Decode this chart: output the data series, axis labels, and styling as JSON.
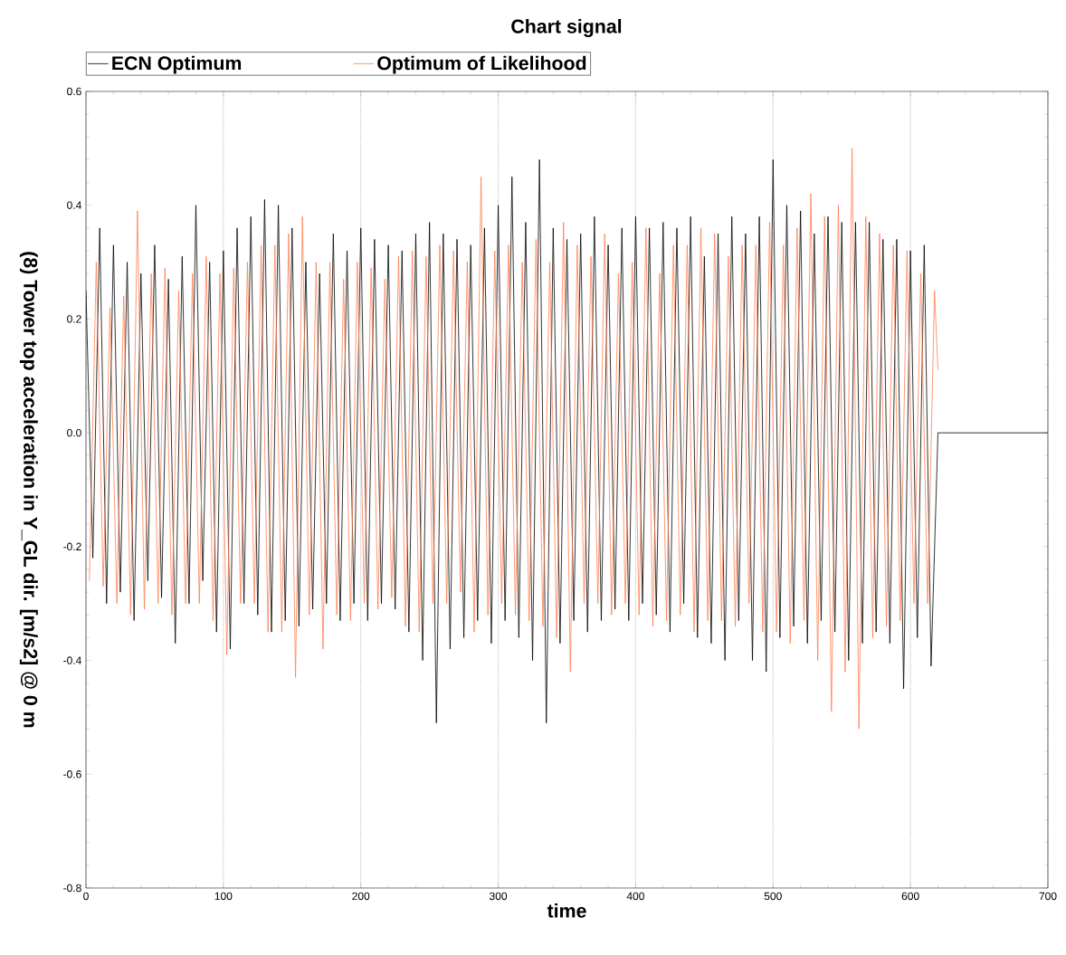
{
  "chart_data": {
    "type": "line",
    "title": "Chart signal",
    "xlabel": "time",
    "ylabel": "(8) Tower top acceleration in Y_GL dir. [m/s2] @ 0 m",
    "xlim": [
      0,
      700
    ],
    "xticks": [
      0,
      100,
      200,
      300,
      400,
      500,
      600,
      700
    ],
    "ylim": [
      -0.8,
      0.6
    ],
    "yticks": [
      -0.8,
      -0.6,
      -0.4,
      -0.2,
      {
        "value": 0,
        "label": "0.0"
      },
      0.2,
      0.4,
      0.6
    ],
    "grid": "x",
    "legend": "top",
    "marker": "none",
    "line_style": "solid",
    "series": [
      {
        "name": "ECN Optimum",
        "color": "#000000",
        "x": [
          0,
          5,
          10,
          15,
          20,
          25,
          30,
          35,
          40,
          45,
          50,
          55,
          60,
          65,
          70,
          75,
          80,
          85,
          90,
          95,
          100,
          105,
          110,
          115,
          120,
          125,
          130,
          135,
          140,
          145,
          150,
          155,
          160,
          165,
          170,
          175,
          180,
          185,
          190,
          195,
          200,
          205,
          210,
          215,
          220,
          225,
          230,
          235,
          240,
          245,
          250,
          255,
          260,
          265,
          270,
          275,
          280,
          285,
          290,
          295,
          300,
          305,
          310,
          315,
          320,
          325,
          330,
          335,
          340,
          345,
          350,
          355,
          360,
          365,
          370,
          375,
          380,
          385,
          390,
          395,
          400,
          405,
          410,
          415,
          420,
          425,
          430,
          435,
          440,
          445,
          450,
          455,
          460,
          465,
          470,
          475,
          480,
          485,
          490,
          495,
          500,
          505,
          510,
          515,
          520,
          525,
          530,
          535,
          540,
          545,
          550,
          555,
          560,
          565,
          570,
          575,
          580,
          585,
          590,
          595,
          600,
          605,
          610,
          615,
          620,
          700
        ],
        "values": [
          0.25,
          -0.22,
          0.36,
          -0.3,
          0.33,
          -0.28,
          0.3,
          -0.33,
          0.28,
          -0.26,
          0.33,
          -0.29,
          0.27,
          -0.37,
          0.31,
          -0.3,
          0.4,
          -0.26,
          0.3,
          -0.35,
          0.32,
          -0.38,
          0.36,
          -0.3,
          0.38,
          -0.32,
          0.41,
          -0.35,
          0.4,
          -0.33,
          0.36,
          -0.34,
          0.3,
          -0.31,
          0.28,
          -0.3,
          0.35,
          -0.33,
          0.32,
          -0.3,
          0.36,
          -0.33,
          0.34,
          -0.3,
          0.33,
          -0.31,
          0.32,
          -0.35,
          0.35,
          -0.4,
          0.37,
          -0.51,
          0.35,
          -0.38,
          0.34,
          -0.36,
          0.33,
          -0.33,
          0.36,
          -0.37,
          0.4,
          -0.33,
          0.45,
          -0.36,
          0.37,
          -0.4,
          0.48,
          -0.51,
          0.36,
          -0.37,
          0.34,
          -0.33,
          0.35,
          -0.35,
          0.38,
          -0.33,
          0.33,
          -0.31,
          0.36,
          -0.33,
          0.38,
          -0.3,
          0.36,
          -0.32,
          0.37,
          -0.35,
          0.36,
          -0.3,
          0.38,
          -0.36,
          0.31,
          -0.37,
          0.35,
          -0.4,
          0.38,
          -0.33,
          0.35,
          -0.4,
          0.38,
          -0.42,
          0.48,
          -0.36,
          0.4,
          -0.34,
          0.39,
          -0.37,
          0.35,
          -0.33,
          0.38,
          -0.35,
          0.37,
          -0.4,
          0.37,
          -0.37,
          0.37,
          -0.35,
          0.34,
          -0.37,
          0.34,
          -0.45,
          0.32,
          -0.36,
          0.33,
          -0.41,
          0.0,
          0.0
        ]
      },
      {
        "name": "Optimum of Likelihood",
        "color": "#ff7f50",
        "x": [
          2.5,
          7.5,
          12.5,
          17.5,
          22.5,
          27.5,
          32.5,
          37.5,
          42.5,
          47.5,
          52.5,
          57.5,
          62.5,
          67.5,
          72.5,
          77.5,
          82.5,
          87.5,
          92.5,
          97.5,
          102.5,
          107.5,
          112.5,
          117.5,
          122.5,
          127.5,
          132.5,
          137.5,
          142.5,
          147.5,
          152.5,
          157.5,
          162.5,
          167.5,
          172.5,
          177.5,
          182.5,
          187.5,
          192.5,
          197.5,
          202.5,
          207.5,
          212.5,
          217.5,
          222.5,
          227.5,
          232.5,
          237.5,
          242.5,
          247.5,
          252.5,
          257.5,
          262.5,
          267.5,
          272.5,
          277.5,
          282.5,
          287.5,
          292.5,
          297.5,
          302.5,
          307.5,
          312.5,
          317.5,
          322.5,
          327.5,
          332.5,
          337.5,
          342.5,
          347.5,
          352.5,
          357.5,
          362.5,
          367.5,
          372.5,
          377.5,
          382.5,
          387.5,
          392.5,
          397.5,
          402.5,
          407.5,
          412.5,
          417.5,
          422.5,
          427.5,
          432.5,
          437.5,
          442.5,
          447.5,
          452.5,
          457.5,
          462.5,
          467.5,
          472.5,
          477.5,
          482.5,
          487.5,
          492.5,
          497.5,
          502.5,
          507.5,
          512.5,
          517.5,
          522.5,
          527.5,
          532.5,
          537.5,
          542.5,
          547.5,
          552.5,
          557.5,
          562.5,
          567.5,
          572.5,
          577.5,
          582.5,
          587.5,
          592.5,
          597.5,
          602.5,
          607.5,
          612.5,
          617.5,
          620
        ],
        "values": [
          -0.26,
          0.3,
          -0.27,
          0.22,
          -0.3,
          0.24,
          -0.32,
          0.39,
          -0.31,
          0.28,
          -0.3,
          0.29,
          -0.32,
          0.25,
          -0.3,
          0.28,
          -0.3,
          0.31,
          -0.33,
          0.28,
          -0.39,
          0.29,
          -0.3,
          0.3,
          -0.3,
          0.33,
          -0.35,
          0.33,
          -0.35,
          0.35,
          -0.43,
          0.38,
          -0.32,
          0.3,
          -0.38,
          0.3,
          -0.32,
          0.27,
          -0.33,
          0.3,
          -0.3,
          0.29,
          -0.31,
          0.27,
          -0.29,
          0.31,
          -0.34,
          0.32,
          -0.35,
          0.31,
          -0.3,
          0.33,
          -0.3,
          0.32,
          -0.28,
          0.3,
          -0.35,
          0.45,
          -0.32,
          0.32,
          -0.3,
          0.33,
          -0.32,
          0.3,
          -0.33,
          0.34,
          -0.34,
          0.3,
          -0.36,
          0.37,
          -0.42,
          0.33,
          -0.3,
          0.31,
          -0.3,
          0.35,
          -0.32,
          0.28,
          -0.3,
          0.3,
          -0.32,
          0.36,
          -0.34,
          0.28,
          -0.33,
          0.33,
          -0.32,
          0.33,
          -0.35,
          0.36,
          -0.33,
          0.35,
          -0.33,
          0.31,
          -0.34,
          0.33,
          -0.3,
          0.33,
          -0.35,
          0.37,
          -0.35,
          0.33,
          -0.37,
          0.36,
          -0.33,
          0.42,
          -0.4,
          0.38,
          -0.49,
          0.4,
          -0.42,
          0.5,
          -0.52,
          0.38,
          -0.36,
          0.35,
          -0.34,
          0.33,
          -0.33,
          0.32,
          -0.3,
          0.28,
          -0.3,
          0.25,
          0.11
        ]
      }
    ]
  }
}
